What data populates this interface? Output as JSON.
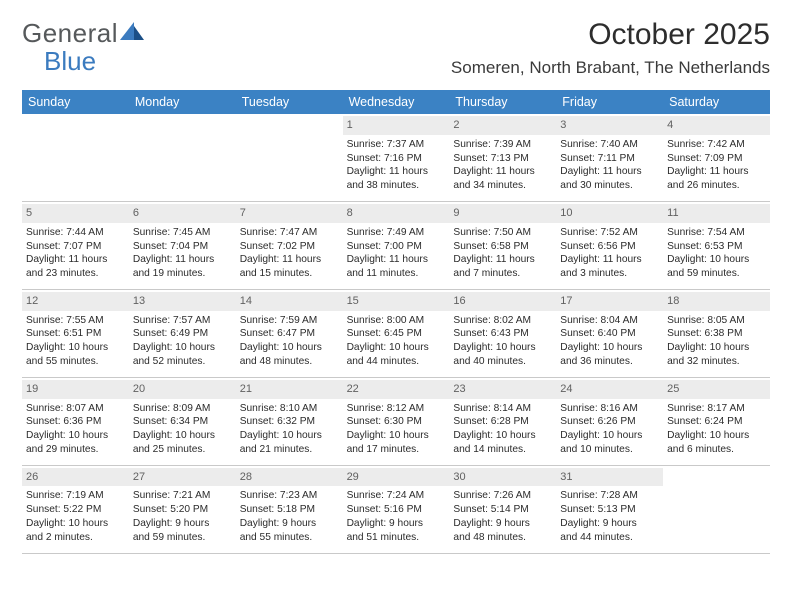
{
  "brand": {
    "text1": "General",
    "text2": "Blue"
  },
  "title": "October 2025",
  "location": "Someren, North Brabant, The Netherlands",
  "colors": {
    "header_bg": "#3b82c4",
    "header_text": "#ffffff",
    "daynum_bg": "#ececec",
    "daynum_text": "#616161",
    "text": "#2b2b2b",
    "border": "#c9c9c9",
    "logo_gray": "#56595b",
    "logo_blue": "#3b7bbf"
  },
  "day_names": [
    "Sunday",
    "Monday",
    "Tuesday",
    "Wednesday",
    "Thursday",
    "Friday",
    "Saturday"
  ],
  "weeks": [
    [
      {
        "n": "",
        "empty": true
      },
      {
        "n": "",
        "empty": true
      },
      {
        "n": "",
        "empty": true
      },
      {
        "n": "1",
        "sunrise": "Sunrise: 7:37 AM",
        "sunset": "Sunset: 7:16 PM",
        "dl1": "Daylight: 11 hours",
        "dl2": "and 38 minutes."
      },
      {
        "n": "2",
        "sunrise": "Sunrise: 7:39 AM",
        "sunset": "Sunset: 7:13 PM",
        "dl1": "Daylight: 11 hours",
        "dl2": "and 34 minutes."
      },
      {
        "n": "3",
        "sunrise": "Sunrise: 7:40 AM",
        "sunset": "Sunset: 7:11 PM",
        "dl1": "Daylight: 11 hours",
        "dl2": "and 30 minutes."
      },
      {
        "n": "4",
        "sunrise": "Sunrise: 7:42 AM",
        "sunset": "Sunset: 7:09 PM",
        "dl1": "Daylight: 11 hours",
        "dl2": "and 26 minutes."
      }
    ],
    [
      {
        "n": "5",
        "sunrise": "Sunrise: 7:44 AM",
        "sunset": "Sunset: 7:07 PM",
        "dl1": "Daylight: 11 hours",
        "dl2": "and 23 minutes."
      },
      {
        "n": "6",
        "sunrise": "Sunrise: 7:45 AM",
        "sunset": "Sunset: 7:04 PM",
        "dl1": "Daylight: 11 hours",
        "dl2": "and 19 minutes."
      },
      {
        "n": "7",
        "sunrise": "Sunrise: 7:47 AM",
        "sunset": "Sunset: 7:02 PM",
        "dl1": "Daylight: 11 hours",
        "dl2": "and 15 minutes."
      },
      {
        "n": "8",
        "sunrise": "Sunrise: 7:49 AM",
        "sunset": "Sunset: 7:00 PM",
        "dl1": "Daylight: 11 hours",
        "dl2": "and 11 minutes."
      },
      {
        "n": "9",
        "sunrise": "Sunrise: 7:50 AM",
        "sunset": "Sunset: 6:58 PM",
        "dl1": "Daylight: 11 hours",
        "dl2": "and 7 minutes."
      },
      {
        "n": "10",
        "sunrise": "Sunrise: 7:52 AM",
        "sunset": "Sunset: 6:56 PM",
        "dl1": "Daylight: 11 hours",
        "dl2": "and 3 minutes."
      },
      {
        "n": "11",
        "sunrise": "Sunrise: 7:54 AM",
        "sunset": "Sunset: 6:53 PM",
        "dl1": "Daylight: 10 hours",
        "dl2": "and 59 minutes."
      }
    ],
    [
      {
        "n": "12",
        "sunrise": "Sunrise: 7:55 AM",
        "sunset": "Sunset: 6:51 PM",
        "dl1": "Daylight: 10 hours",
        "dl2": "and 55 minutes."
      },
      {
        "n": "13",
        "sunrise": "Sunrise: 7:57 AM",
        "sunset": "Sunset: 6:49 PM",
        "dl1": "Daylight: 10 hours",
        "dl2": "and 52 minutes."
      },
      {
        "n": "14",
        "sunrise": "Sunrise: 7:59 AM",
        "sunset": "Sunset: 6:47 PM",
        "dl1": "Daylight: 10 hours",
        "dl2": "and 48 minutes."
      },
      {
        "n": "15",
        "sunrise": "Sunrise: 8:00 AM",
        "sunset": "Sunset: 6:45 PM",
        "dl1": "Daylight: 10 hours",
        "dl2": "and 44 minutes."
      },
      {
        "n": "16",
        "sunrise": "Sunrise: 8:02 AM",
        "sunset": "Sunset: 6:43 PM",
        "dl1": "Daylight: 10 hours",
        "dl2": "and 40 minutes."
      },
      {
        "n": "17",
        "sunrise": "Sunrise: 8:04 AM",
        "sunset": "Sunset: 6:40 PM",
        "dl1": "Daylight: 10 hours",
        "dl2": "and 36 minutes."
      },
      {
        "n": "18",
        "sunrise": "Sunrise: 8:05 AM",
        "sunset": "Sunset: 6:38 PM",
        "dl1": "Daylight: 10 hours",
        "dl2": "and 32 minutes."
      }
    ],
    [
      {
        "n": "19",
        "sunrise": "Sunrise: 8:07 AM",
        "sunset": "Sunset: 6:36 PM",
        "dl1": "Daylight: 10 hours",
        "dl2": "and 29 minutes."
      },
      {
        "n": "20",
        "sunrise": "Sunrise: 8:09 AM",
        "sunset": "Sunset: 6:34 PM",
        "dl1": "Daylight: 10 hours",
        "dl2": "and 25 minutes."
      },
      {
        "n": "21",
        "sunrise": "Sunrise: 8:10 AM",
        "sunset": "Sunset: 6:32 PM",
        "dl1": "Daylight: 10 hours",
        "dl2": "and 21 minutes."
      },
      {
        "n": "22",
        "sunrise": "Sunrise: 8:12 AM",
        "sunset": "Sunset: 6:30 PM",
        "dl1": "Daylight: 10 hours",
        "dl2": "and 17 minutes."
      },
      {
        "n": "23",
        "sunrise": "Sunrise: 8:14 AM",
        "sunset": "Sunset: 6:28 PM",
        "dl1": "Daylight: 10 hours",
        "dl2": "and 14 minutes."
      },
      {
        "n": "24",
        "sunrise": "Sunrise: 8:16 AM",
        "sunset": "Sunset: 6:26 PM",
        "dl1": "Daylight: 10 hours",
        "dl2": "and 10 minutes."
      },
      {
        "n": "25",
        "sunrise": "Sunrise: 8:17 AM",
        "sunset": "Sunset: 6:24 PM",
        "dl1": "Daylight: 10 hours",
        "dl2": "and 6 minutes."
      }
    ],
    [
      {
        "n": "26",
        "sunrise": "Sunrise: 7:19 AM",
        "sunset": "Sunset: 5:22 PM",
        "dl1": "Daylight: 10 hours",
        "dl2": "and 2 minutes."
      },
      {
        "n": "27",
        "sunrise": "Sunrise: 7:21 AM",
        "sunset": "Sunset: 5:20 PM",
        "dl1": "Daylight: 9 hours",
        "dl2": "and 59 minutes."
      },
      {
        "n": "28",
        "sunrise": "Sunrise: 7:23 AM",
        "sunset": "Sunset: 5:18 PM",
        "dl1": "Daylight: 9 hours",
        "dl2": "and 55 minutes."
      },
      {
        "n": "29",
        "sunrise": "Sunrise: 7:24 AM",
        "sunset": "Sunset: 5:16 PM",
        "dl1": "Daylight: 9 hours",
        "dl2": "and 51 minutes."
      },
      {
        "n": "30",
        "sunrise": "Sunrise: 7:26 AM",
        "sunset": "Sunset: 5:14 PM",
        "dl1": "Daylight: 9 hours",
        "dl2": "and 48 minutes."
      },
      {
        "n": "31",
        "sunrise": "Sunrise: 7:28 AM",
        "sunset": "Sunset: 5:13 PM",
        "dl1": "Daylight: 9 hours",
        "dl2": "and 44 minutes."
      },
      {
        "n": "",
        "empty": true
      }
    ]
  ]
}
